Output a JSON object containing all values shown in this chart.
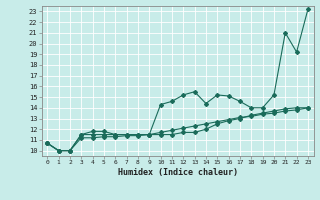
{
  "title": "",
  "xlabel": "Humidex (Indice chaleur)",
  "bg_color": "#c8ece9",
  "grid_color": "#b0d8d4",
  "line_color": "#1a6b5a",
  "xlim": [
    -0.5,
    23.5
  ],
  "ylim": [
    9.5,
    23.5
  ],
  "xticks": [
    0,
    1,
    2,
    3,
    4,
    5,
    6,
    7,
    8,
    9,
    10,
    11,
    12,
    13,
    14,
    15,
    16,
    17,
    18,
    19,
    20,
    21,
    22,
    23
  ],
  "yticks": [
    10,
    11,
    12,
    13,
    14,
    15,
    16,
    17,
    18,
    19,
    20,
    21,
    22,
    23
  ],
  "line1_x": [
    0,
    1,
    2,
    3,
    4,
    5,
    6,
    7,
    8,
    9,
    10,
    11,
    12,
    13,
    14,
    15,
    16,
    17,
    18,
    19,
    20,
    21,
    22,
    23
  ],
  "line1_y": [
    10.7,
    10.0,
    10.0,
    11.5,
    11.8,
    11.8,
    11.5,
    11.5,
    11.5,
    11.5,
    14.3,
    14.6,
    15.2,
    15.5,
    14.4,
    15.2,
    15.1,
    14.6,
    14.0,
    14.0,
    15.2,
    21.0,
    19.2,
    23.2
  ],
  "line2_x": [
    0,
    1,
    2,
    3,
    4,
    5,
    6,
    7,
    8,
    9,
    10,
    11,
    12,
    13,
    14,
    15,
    16,
    17,
    18,
    19,
    20,
    21,
    22,
    23
  ],
  "line2_y": [
    10.7,
    10.0,
    10.0,
    11.5,
    11.5,
    11.5,
    11.5,
    11.5,
    11.5,
    11.5,
    11.5,
    11.5,
    11.7,
    11.7,
    12.0,
    12.5,
    12.8,
    13.0,
    13.3,
    13.5,
    13.7,
    13.9,
    14.0,
    14.0
  ],
  "line3_x": [
    0,
    1,
    2,
    3,
    4,
    5,
    6,
    7,
    8,
    9,
    10,
    11,
    12,
    13,
    14,
    15,
    16,
    17,
    18,
    19,
    20,
    21,
    22,
    23
  ],
  "line3_y": [
    10.7,
    10.0,
    10.0,
    11.2,
    11.2,
    11.3,
    11.3,
    11.4,
    11.4,
    11.5,
    11.7,
    11.9,
    12.1,
    12.3,
    12.5,
    12.7,
    12.9,
    13.1,
    13.2,
    13.4,
    13.5,
    13.7,
    13.8,
    14.0
  ],
  "marker": "D",
  "markersize": 2.0,
  "linewidth": 0.8
}
